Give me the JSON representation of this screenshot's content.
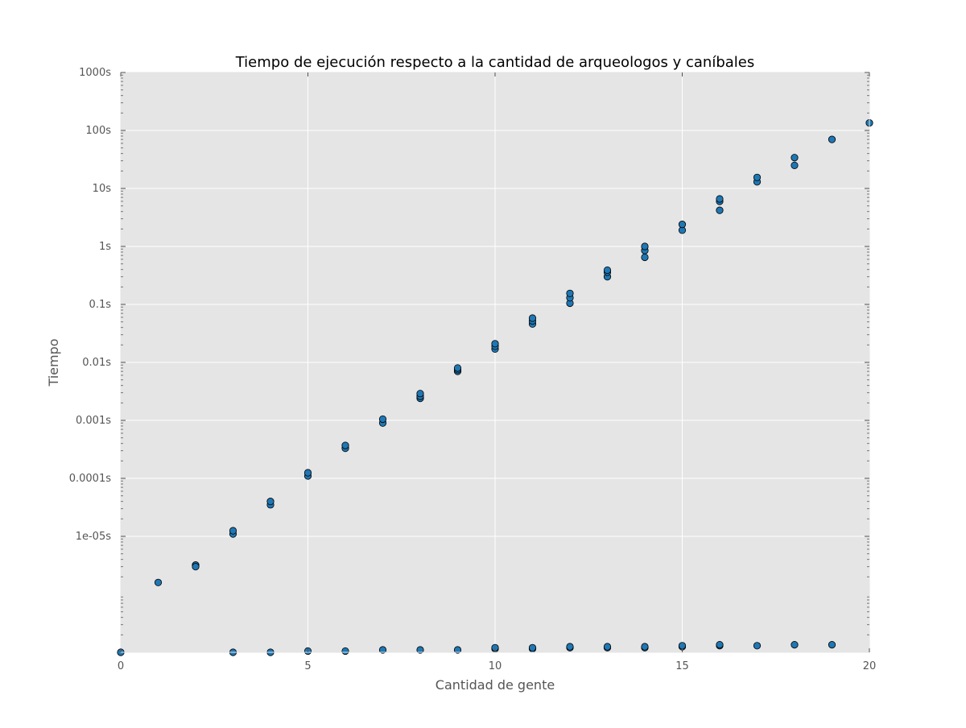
{
  "chart_data": {
    "type": "scatter",
    "title": "Tiempo de ejecución respecto a la cantidad de arqueologos y caníbales",
    "xlabel": "Cantidad de gente",
    "ylabel": "Tiempo",
    "xlim": [
      0,
      20
    ],
    "ylim": [
      1e-07,
      1000
    ],
    "yscale": "log",
    "grid": true,
    "x_ticks": [
      {
        "value": 0,
        "label": "0"
      },
      {
        "value": 5,
        "label": "5"
      },
      {
        "value": 10,
        "label": "10"
      },
      {
        "value": 15,
        "label": "15"
      },
      {
        "value": 20,
        "label": "20"
      }
    ],
    "y_ticks": [
      {
        "value": 1e-05,
        "label": "1e-05s"
      },
      {
        "value": 0.0001,
        "label": "0.0001s"
      },
      {
        "value": 0.001,
        "label": "0.001s"
      },
      {
        "value": 0.01,
        "label": "0.01s"
      },
      {
        "value": 0.1,
        "label": "0.1s"
      },
      {
        "value": 1,
        "label": "1s"
      },
      {
        "value": 10,
        "label": "10s"
      },
      {
        "value": 100,
        "label": "100s"
      },
      {
        "value": 1000,
        "label": "1000s"
      }
    ],
    "marker_color": "#1f77b4",
    "background_color": "#e5e5e5",
    "points": [
      {
        "x": 0,
        "y": 1e-07
      },
      {
        "x": 1,
        "y": 1.6e-06
      },
      {
        "x": 2,
        "y": 3.2e-06
      },
      {
        "x": 2,
        "y": 3e-06
      },
      {
        "x": 3,
        "y": 1.1e-05
      },
      {
        "x": 3,
        "y": 1.25e-05
      },
      {
        "x": 3,
        "y": 1e-07
      },
      {
        "x": 4,
        "y": 3.5e-05
      },
      {
        "x": 4,
        "y": 4e-05
      },
      {
        "x": 4,
        "y": 1e-07
      },
      {
        "x": 5,
        "y": 0.00011
      },
      {
        "x": 5,
        "y": 0.000125
      },
      {
        "x": 5,
        "y": 1.05e-07
      },
      {
        "x": 6,
        "y": 0.00033
      },
      {
        "x": 6,
        "y": 0.00037
      },
      {
        "x": 6,
        "y": 1.05e-07
      },
      {
        "x": 7,
        "y": 0.0009
      },
      {
        "x": 7,
        "y": 0.00105
      },
      {
        "x": 7,
        "y": 1.1e-07
      },
      {
        "x": 8,
        "y": 0.0024
      },
      {
        "x": 8,
        "y": 0.0026
      },
      {
        "x": 8,
        "y": 0.0029
      },
      {
        "x": 8,
        "y": 1.1e-07
      },
      {
        "x": 9,
        "y": 0.007
      },
      {
        "x": 9,
        "y": 0.0075
      },
      {
        "x": 9,
        "y": 0.008
      },
      {
        "x": 9,
        "y": 1.1e-07
      },
      {
        "x": 10,
        "y": 0.017
      },
      {
        "x": 10,
        "y": 0.019
      },
      {
        "x": 10,
        "y": 0.021
      },
      {
        "x": 10,
        "y": 1.15e-07
      },
      {
        "x": 10,
        "y": 1.2e-07
      },
      {
        "x": 11,
        "y": 0.046
      },
      {
        "x": 11,
        "y": 0.052
      },
      {
        "x": 11,
        "y": 0.058
      },
      {
        "x": 11,
        "y": 1.15e-07
      },
      {
        "x": 11,
        "y": 1.2e-07
      },
      {
        "x": 12,
        "y": 0.105
      },
      {
        "x": 12,
        "y": 0.13
      },
      {
        "x": 12,
        "y": 0.155
      },
      {
        "x": 12,
        "y": 1.2e-07
      },
      {
        "x": 12,
        "y": 1.25e-07
      },
      {
        "x": 13,
        "y": 0.3
      },
      {
        "x": 13,
        "y": 0.36
      },
      {
        "x": 13,
        "y": 0.39
      },
      {
        "x": 13,
        "y": 1.2e-07
      },
      {
        "x": 13,
        "y": 1.25e-07
      },
      {
        "x": 14,
        "y": 0.65
      },
      {
        "x": 14,
        "y": 0.85
      },
      {
        "x": 14,
        "y": 1.0
      },
      {
        "x": 14,
        "y": 1.2e-07
      },
      {
        "x": 14,
        "y": 1.25e-07
      },
      {
        "x": 15,
        "y": 1.9
      },
      {
        "x": 15,
        "y": 2.4
      },
      {
        "x": 15,
        "y": 1.25e-07
      },
      {
        "x": 15,
        "y": 1.3e-07
      },
      {
        "x": 16,
        "y": 4.2
      },
      {
        "x": 16,
        "y": 6.0
      },
      {
        "x": 16,
        "y": 6.6
      },
      {
        "x": 16,
        "y": 1.3e-07
      },
      {
        "x": 16,
        "y": 1.35e-07
      },
      {
        "x": 17,
        "y": 13.0
      },
      {
        "x": 17,
        "y": 15.5
      },
      {
        "x": 17,
        "y": 1.3e-07
      },
      {
        "x": 18,
        "y": 25.0
      },
      {
        "x": 18,
        "y": 34.0
      },
      {
        "x": 18,
        "y": 1.35e-07
      },
      {
        "x": 19,
        "y": 70.0
      },
      {
        "x": 19,
        "y": 1.35e-07
      },
      {
        "x": 20,
        "y": 135.0
      }
    ]
  }
}
